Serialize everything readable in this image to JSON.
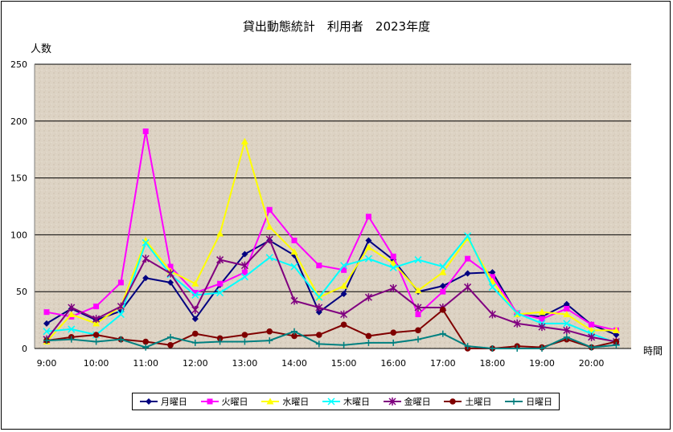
{
  "chart_data": {
    "type": "line",
    "title": "貸出動態統計　利用者　2023年度",
    "ylabel": "人数",
    "xlabel": "時間",
    "ylim": [
      0,
      250
    ],
    "yticks": [
      0,
      50,
      100,
      150,
      200,
      250
    ],
    "x": [
      "9:00",
      "9:30",
      "10:00",
      "10:30",
      "11:00",
      "11:30",
      "12:00",
      "12:30",
      "13:00",
      "13:30",
      "14:00",
      "14:30",
      "15:00",
      "15:30",
      "16:00",
      "16:30",
      "17:00",
      "17:30",
      "18:00",
      "18:30",
      "19:00",
      "19:30",
      "20:00",
      "20:30"
    ],
    "xtick_labels": [
      "9:00",
      "10:00",
      "11:00",
      "12:00",
      "13:00",
      "14:00",
      "15:00",
      "16:00",
      "17:00",
      "18:00",
      "19:00",
      "20:00"
    ],
    "grid": true,
    "legend_position": "bottom",
    "series": [
      {
        "name": "月曜日",
        "color": "#000080",
        "marker": "diamond",
        "values": [
          22,
          35,
          25,
          33,
          62,
          58,
          26,
          56,
          83,
          95,
          82,
          32,
          48,
          95,
          78,
          50,
          55,
          66,
          67,
          30,
          28,
          39,
          21,
          12
        ]
      },
      {
        "name": "火曜日",
        "color": "#FF00FF",
        "marker": "square",
        "values": [
          32,
          28,
          37,
          58,
          191,
          72,
          49,
          57,
          67,
          122,
          95,
          73,
          69,
          116,
          81,
          30,
          50,
          79,
          63,
          31,
          26,
          35,
          21,
          16
        ]
      },
      {
        "name": "水曜日",
        "color": "#FFFF00",
        "marker": "triangle",
        "values": [
          6,
          30,
          22,
          37,
          95,
          68,
          57,
          101,
          182,
          107,
          85,
          45,
          55,
          89,
          75,
          51,
          67,
          97,
          59,
          30,
          32,
          30,
          16,
          16
        ]
      },
      {
        "name": "木曜日",
        "color": "#00FFFF",
        "marker": "x",
        "values": [
          15,
          17,
          12,
          30,
          93,
          65,
          47,
          49,
          63,
          80,
          72,
          45,
          73,
          79,
          71,
          78,
          72,
          99,
          54,
          31,
          22,
          22,
          13,
          5
        ]
      },
      {
        "name": "金曜日",
        "color": "#800080",
        "marker": "star",
        "values": [
          8,
          36,
          26,
          37,
          79,
          66,
          34,
          78,
          73,
          96,
          42,
          36,
          30,
          45,
          53,
          36,
          36,
          54,
          30,
          22,
          19,
          16,
          10,
          6
        ]
      },
      {
        "name": "土曜日",
        "color": "#800000",
        "marker": "circle",
        "values": [
          7,
          10,
          12,
          8,
          6,
          3,
          13,
          9,
          12,
          15,
          11,
          12,
          21,
          11,
          14,
          16,
          34,
          0,
          0,
          2,
          1,
          8,
          1,
          6
        ]
      },
      {
        "name": "日曜日",
        "color": "#008080",
        "marker": "plus",
        "values": [
          7,
          8,
          6,
          8,
          1,
          10,
          5,
          6,
          6,
          7,
          15,
          4,
          3,
          5,
          5,
          8,
          13,
          2,
          0,
          0,
          0,
          10,
          1,
          3
        ]
      }
    ]
  }
}
